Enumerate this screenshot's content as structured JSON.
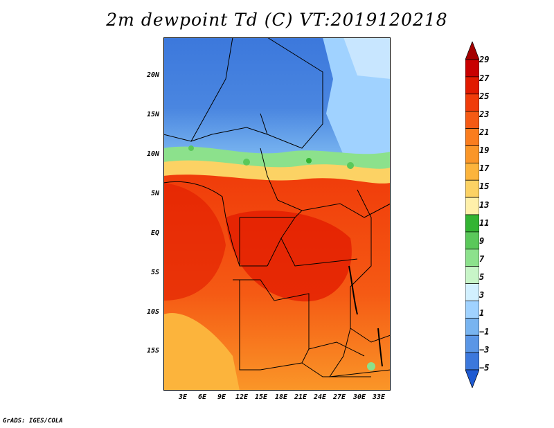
{
  "title": "2m dewpoint Td (C) VT:2019120218",
  "footer": "GrADS: IGES/COLA",
  "map": {
    "region": "Central Africa",
    "lat_ticks": [
      "20N",
      "15N",
      "10N",
      "5N",
      "EQ",
      "5S",
      "10S",
      "15S"
    ],
    "lon_ticks": [
      "3E",
      "6E",
      "9E",
      "12E",
      "15E",
      "18E",
      "21E",
      "24E",
      "27E",
      "30E",
      "33E"
    ],
    "field": "2m dewpoint temperature"
  },
  "colorbar": {
    "labels": [
      "29",
      "27",
      "25",
      "23",
      "21",
      "19",
      "17",
      "15",
      "13",
      "11",
      "9",
      "7",
      "5",
      "3",
      "1",
      "−1",
      "−3",
      "−5"
    ],
    "colors": [
      "#a50000",
      "#c80000",
      "#e11a00",
      "#f03c0a",
      "#f55a14",
      "#fa7d1e",
      "#fa9628",
      "#fcb43c",
      "#fcd264",
      "#fff0aa",
      "#32b432",
      "#5ac85a",
      "#8ce18c",
      "#c8f5c8",
      "#d2f0ff",
      "#a0d2ff",
      "#78b4f0",
      "#5a96e6",
      "#3c78dc",
      "#1e5ad2"
    ]
  }
}
